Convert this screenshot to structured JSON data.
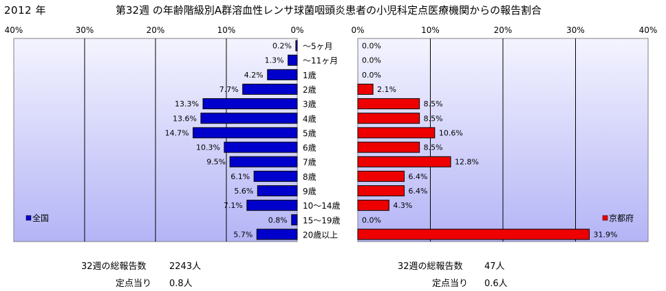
{
  "header": {
    "year": "2012 年",
    "title": "第32週 の年齢階級別A群溶血性レンサ球菌咽頭炎患者の小児科定点医療機関からの報告割合"
  },
  "chart_data": {
    "type": "bar",
    "orientation": "horizontal",
    "categories": [
      "〜5ヶ月",
      "〜11ヶ月",
      "1歳",
      "2歳",
      "3歳",
      "4歳",
      "5歳",
      "6歳",
      "7歳",
      "8歳",
      "9歳",
      "10〜14歳",
      "15〜19歳",
      "20歳以上"
    ],
    "xlim": [
      0,
      40
    ],
    "ticks": [
      "40%",
      "30%",
      "20%",
      "10%",
      "0%"
    ],
    "right_ticks": [
      "0%",
      "10%",
      "20%",
      "30%",
      "40%"
    ],
    "grid": true,
    "series": [
      {
        "name": "全国",
        "color": "#0000cc",
        "side": "left",
        "values": [
          0.2,
          1.3,
          4.2,
          7.7,
          13.3,
          13.6,
          14.7,
          10.3,
          9.5,
          6.1,
          5.6,
          7.1,
          0.8,
          5.7
        ],
        "labels": [
          "0.2%",
          "1.3%",
          "4.2%",
          "7.7%",
          "13.3%",
          "13.6%",
          "14.7%",
          "10.3%",
          "9.5%",
          "6.1%",
          "5.6%",
          "7.1%",
          "0.8%",
          "5.7%"
        ],
        "legend_position": "bottom-left"
      },
      {
        "name": "京都府",
        "color": "#ee0000",
        "side": "right",
        "values": [
          0.0,
          0.0,
          0.0,
          2.1,
          8.5,
          8.5,
          10.6,
          8.5,
          12.8,
          6.4,
          6.4,
          4.3,
          0.0,
          31.9
        ],
        "labels": [
          "0.0%",
          "0.0%",
          "0.0%",
          "2.1%",
          "8.5%",
          "8.5%",
          "10.6%",
          "8.5%",
          "12.8%",
          "6.4%",
          "6.4%",
          "4.3%",
          "0.0%",
          "31.9%"
        ],
        "legend_position": "bottom-right"
      }
    ]
  },
  "footer": {
    "left": {
      "total_label": "32週の総報告数",
      "total_value": "2243人",
      "per_label": "定点当り",
      "per_value": "0.8人"
    },
    "right": {
      "total_label": "32週の総報告数",
      "total_value": "47人",
      "per_label": "定点当り",
      "per_value": "0.6人"
    }
  },
  "colors": {
    "plot_bg_top": "#f4f4ff",
    "plot_bg_bottom": "#b4b4f6",
    "left_bar": "#0000cc",
    "right_bar": "#ee0000"
  }
}
